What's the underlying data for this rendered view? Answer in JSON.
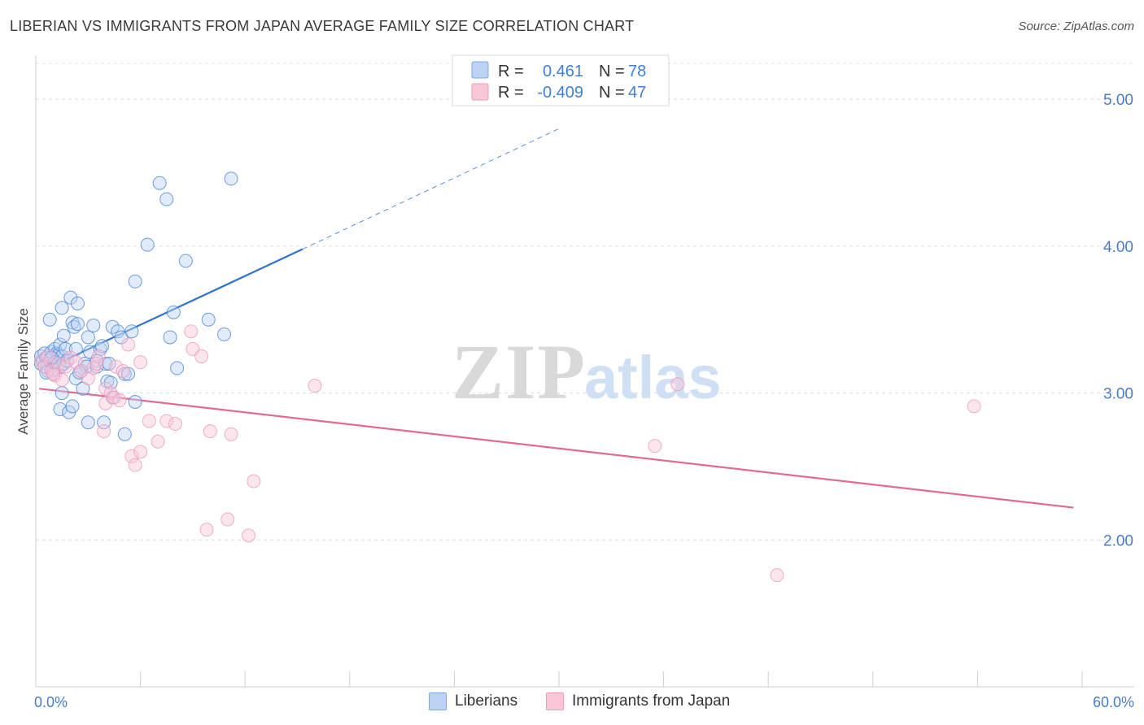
{
  "title": "LIBERIAN VS IMMIGRANTS FROM JAPAN AVERAGE FAMILY SIZE CORRELATION CHART",
  "source": "Source: ZipAtlas.com",
  "watermark": {
    "zip": "ZIP",
    "atlas": "atlas"
  },
  "legend_top": [
    {
      "r_label": "R =",
      "r_value": "0.461",
      "n_label": "N =",
      "n_value": "78",
      "color": "#7aa8e6",
      "fill": "#bcd3f3"
    },
    {
      "r_label": "R =",
      "r_value": "-0.409",
      "n_label": "N =",
      "n_value": "47",
      "color": "#ee9ab8",
      "fill": "#f8c8d9"
    }
  ],
  "legend_bottom": [
    {
      "label": "Liberians",
      "color": "#7aa8e6",
      "fill": "#bcd3f3"
    },
    {
      "label": "Immigrants from Japan",
      "color": "#ee9ab8",
      "fill": "#f8c8d9"
    }
  ],
  "chart_data": {
    "type": "scatter",
    "ylabel": "Average Family Size",
    "xlim": [
      0,
      60
    ],
    "ylim": [
      1.0,
      5.3
    ],
    "x_tick_labels": [
      {
        "value": 0,
        "label": "0.0%"
      },
      {
        "value": 60,
        "label": "60.0%"
      }
    ],
    "y_tick_labels": [
      {
        "value": 2.0,
        "label": "2.00"
      },
      {
        "value": 3.0,
        "label": "3.00"
      },
      {
        "value": 4.0,
        "label": "4.00"
      },
      {
        "value": 5.0,
        "label": "5.00"
      }
    ],
    "grid": "horizontal dashed",
    "series": [
      {
        "name": "Liberians",
        "color": "#4a86d8",
        "fill": "#bcd3f3",
        "trend": {
          "x0": 0.5,
          "y0": 3.16,
          "x1": 15.3,
          "y1": 3.98,
          "dash_to_x": 30,
          "dash_to_y": 4.8,
          "color": "#2f73cf"
        },
        "points": [
          [
            0.3,
            3.25
          ],
          [
            0.3,
            3.2
          ],
          [
            0.4,
            3.22
          ],
          [
            0.5,
            3.18
          ],
          [
            0.5,
            3.27
          ],
          [
            0.6,
            3.24
          ],
          [
            0.7,
            3.2
          ],
          [
            0.7,
            3.15
          ],
          [
            0.8,
            3.22
          ],
          [
            0.9,
            3.28
          ],
          [
            1.0,
            3.25
          ],
          [
            1.0,
            3.13
          ],
          [
            1.1,
            3.3
          ],
          [
            1.2,
            3.21
          ],
          [
            1.2,
            3.27
          ],
          [
            1.3,
            3.26
          ],
          [
            1.4,
            3.33
          ],
          [
            1.4,
            3.18
          ],
          [
            1.5,
            3.25
          ],
          [
            1.6,
            3.2
          ],
          [
            1.7,
            3.3
          ],
          [
            0.8,
            3.5
          ],
          [
            1.5,
            3.58
          ],
          [
            1.6,
            3.39
          ],
          [
            2.0,
            3.65
          ],
          [
            2.1,
            3.48
          ],
          [
            2.2,
            3.45
          ],
          [
            2.4,
            3.61
          ],
          [
            2.4,
            3.47
          ],
          [
            2.3,
            3.3
          ],
          [
            2.6,
            3.15
          ],
          [
            2.8,
            3.2
          ],
          [
            2.9,
            3.18
          ],
          [
            3.0,
            3.38
          ],
          [
            3.1,
            3.28
          ],
          [
            3.3,
            3.46
          ],
          [
            3.5,
            3.18
          ],
          [
            3.7,
            3.3
          ],
          [
            3.8,
            3.32
          ],
          [
            4.0,
            3.2
          ],
          [
            4.2,
            3.2
          ],
          [
            4.4,
            3.45
          ],
          [
            4.7,
            3.42
          ],
          [
            4.9,
            3.38
          ],
          [
            5.1,
            3.13
          ],
          [
            5.3,
            3.13
          ],
          [
            5.5,
            3.42
          ],
          [
            5.7,
            3.76
          ],
          [
            6.4,
            4.01
          ],
          [
            7.1,
            4.43
          ],
          [
            7.5,
            4.32
          ],
          [
            7.7,
            3.38
          ],
          [
            7.9,
            3.55
          ],
          [
            8.1,
            3.17
          ],
          [
            8.6,
            3.9
          ],
          [
            9.9,
            3.5
          ],
          [
            10.8,
            3.4
          ],
          [
            11.2,
            4.46
          ],
          [
            1.5,
            3.0
          ],
          [
            1.4,
            2.89
          ],
          [
            1.9,
            2.87
          ],
          [
            2.1,
            2.91
          ],
          [
            2.3,
            3.1
          ],
          [
            2.7,
            3.03
          ],
          [
            3.0,
            2.8
          ],
          [
            3.9,
            2.8
          ],
          [
            4.1,
            3.08
          ],
          [
            4.3,
            3.07
          ],
          [
            4.4,
            2.97
          ],
          [
            5.1,
            2.72
          ],
          [
            5.7,
            2.94
          ],
          [
            1.0,
            3.16
          ],
          [
            1.1,
            3.21
          ],
          [
            0.9,
            3.24
          ],
          [
            2.5,
            3.14
          ],
          [
            3.5,
            3.22
          ],
          [
            1.8,
            3.22
          ],
          [
            0.6,
            3.14
          ]
        ]
      },
      {
        "name": "Immigrants from Japan",
        "color": "#ee9ab8",
        "fill": "#f8c8d9",
        "trend": {
          "x0": 0.2,
          "y0": 3.03,
          "x1": 59.5,
          "y1": 2.22,
          "color": "#e26a97"
        },
        "points": [
          [
            0.3,
            3.22
          ],
          [
            0.5,
            3.18
          ],
          [
            0.7,
            3.25
          ],
          [
            0.9,
            3.15
          ],
          [
            1.1,
            3.12
          ],
          [
            1.3,
            3.2
          ],
          [
            1.5,
            3.09
          ],
          [
            1.7,
            3.18
          ],
          [
            2.0,
            3.24
          ],
          [
            2.3,
            3.21
          ],
          [
            2.6,
            3.15
          ],
          [
            3.0,
            3.1
          ],
          [
            3.3,
            3.17
          ],
          [
            3.6,
            3.25
          ],
          [
            4.0,
            3.03
          ],
          [
            4.3,
            3.0
          ],
          [
            4.6,
            3.18
          ],
          [
            5.0,
            3.15
          ],
          [
            5.3,
            3.33
          ],
          [
            6.0,
            3.21
          ],
          [
            3.5,
            3.2
          ],
          [
            3.9,
            2.74
          ],
          [
            4.0,
            2.93
          ],
          [
            4.5,
            2.97
          ],
          [
            4.8,
            2.95
          ],
          [
            5.5,
            2.57
          ],
          [
            5.7,
            2.51
          ],
          [
            6.0,
            2.6
          ],
          [
            6.5,
            2.81
          ],
          [
            7.0,
            2.67
          ],
          [
            7.5,
            2.81
          ],
          [
            8.0,
            2.79
          ],
          [
            8.9,
            3.42
          ],
          [
            9.0,
            3.3
          ],
          [
            9.5,
            3.25
          ],
          [
            10.0,
            2.74
          ],
          [
            11.2,
            2.72
          ],
          [
            12.5,
            2.4
          ],
          [
            9.8,
            2.07
          ],
          [
            11.0,
            2.14
          ],
          [
            12.2,
            2.03
          ],
          [
            16.0,
            3.05
          ],
          [
            35.5,
            2.64
          ],
          [
            36.8,
            3.06
          ],
          [
            42.5,
            1.76
          ],
          [
            53.8,
            2.91
          ],
          [
            1.0,
            3.13
          ]
        ]
      }
    ]
  }
}
